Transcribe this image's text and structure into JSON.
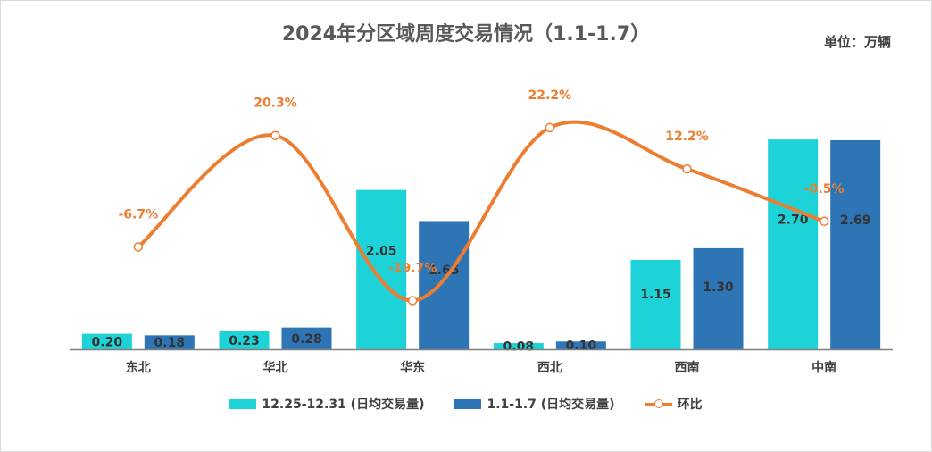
{
  "chart_data": {
    "type": "bar",
    "title": "2024年分区域周度交易情况（1.1-1.7）",
    "unit_label": "单位：万辆",
    "categories": [
      "东北",
      "华北",
      "华东",
      "西北",
      "西南",
      "中南"
    ],
    "series": [
      {
        "name": "12.25-12.31 (日均交易量)",
        "values": [
          0.2,
          0.23,
          2.05,
          0.08,
          1.15,
          2.7
        ],
        "color": "#1ed3d8",
        "kind": "bar"
      },
      {
        "name": "1.1-1.7 (日均交易量)",
        "values": [
          0.18,
          0.28,
          1.65,
          0.1,
          1.3,
          2.69
        ],
        "color": "#2e75b6",
        "kind": "bar"
      },
      {
        "name": "环比",
        "values": [
          -6.7,
          20.3,
          -19.7,
          22.2,
          12.2,
          -0.5
        ],
        "color": "#ed7d31",
        "kind": "line",
        "axis": "secondary",
        "label_suffix": "%"
      }
    ],
    "ylim": [
      0,
      3
    ],
    "y2lim": [
      -25,
      25
    ],
    "grid": false,
    "legend_position": "bottom"
  }
}
